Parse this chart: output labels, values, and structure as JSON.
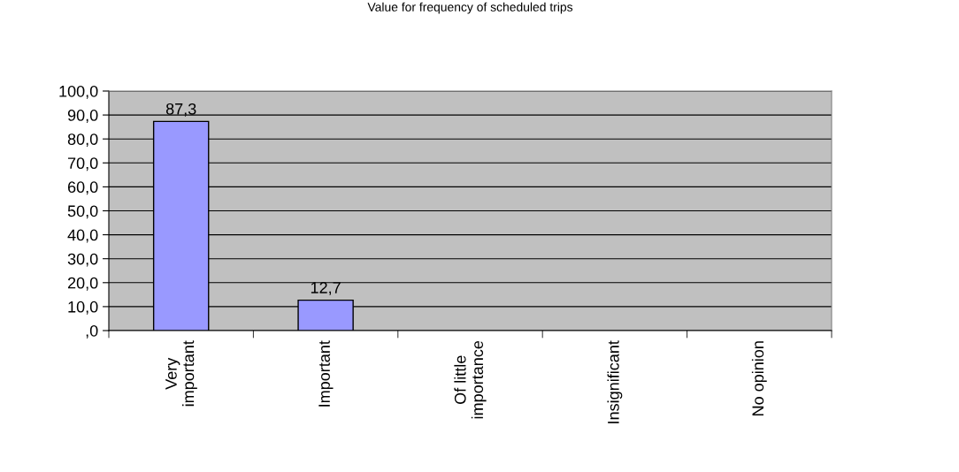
{
  "chart_data": {
    "type": "bar",
    "title": "Value for frequency of scheduled trips",
    "categories": [
      "Very\nimportant",
      "Important",
      "Of little\nimportance",
      "Insignificant",
      "No opinion"
    ],
    "values": [
      87.3,
      12.7,
      null,
      null,
      null
    ],
    "value_labels": [
      "87,3",
      "12,7",
      null,
      null,
      null
    ],
    "color": "#9999ff",
    "ylim": [
      0,
      100
    ],
    "yticks": [
      {
        "value": 0,
        "label": ",0"
      },
      {
        "value": 10,
        "label": "10,0"
      },
      {
        "value": 20,
        "label": "20,0"
      },
      {
        "value": 30,
        "label": "30,0"
      },
      {
        "value": 40,
        "label": "40,0"
      },
      {
        "value": 50,
        "label": "50,0"
      },
      {
        "value": 60,
        "label": "60,0"
      },
      {
        "value": 70,
        "label": "70,0"
      },
      {
        "value": 80,
        "label": "80,0"
      },
      {
        "value": 90,
        "label": "90,0"
      },
      {
        "value": 100,
        "label": "100,0"
      }
    ],
    "grid": "y",
    "legend": false
  }
}
